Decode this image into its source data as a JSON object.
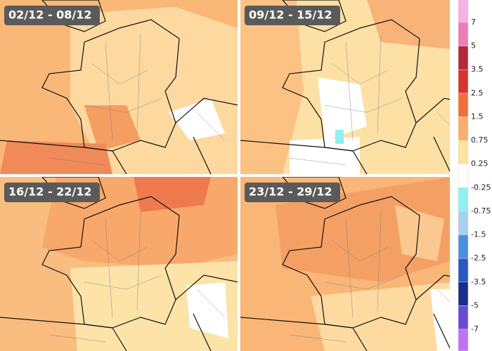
{
  "panels": [
    {
      "label": "02/12 - 08/12"
    },
    {
      "label": "09/12 - 15/12"
    },
    {
      "label": "16/12 - 22/12"
    },
    {
      "label": "23/12 - 29/12"
    }
  ],
  "legend": {
    "labels": [
      "7",
      "5",
      "3.5",
      "2.5",
      "1.5",
      "0.75",
      "0.25",
      "-0.25",
      "-0.75",
      "-1.5",
      "-2.5",
      "-3.5",
      "-5",
      "-7"
    ]
  }
}
